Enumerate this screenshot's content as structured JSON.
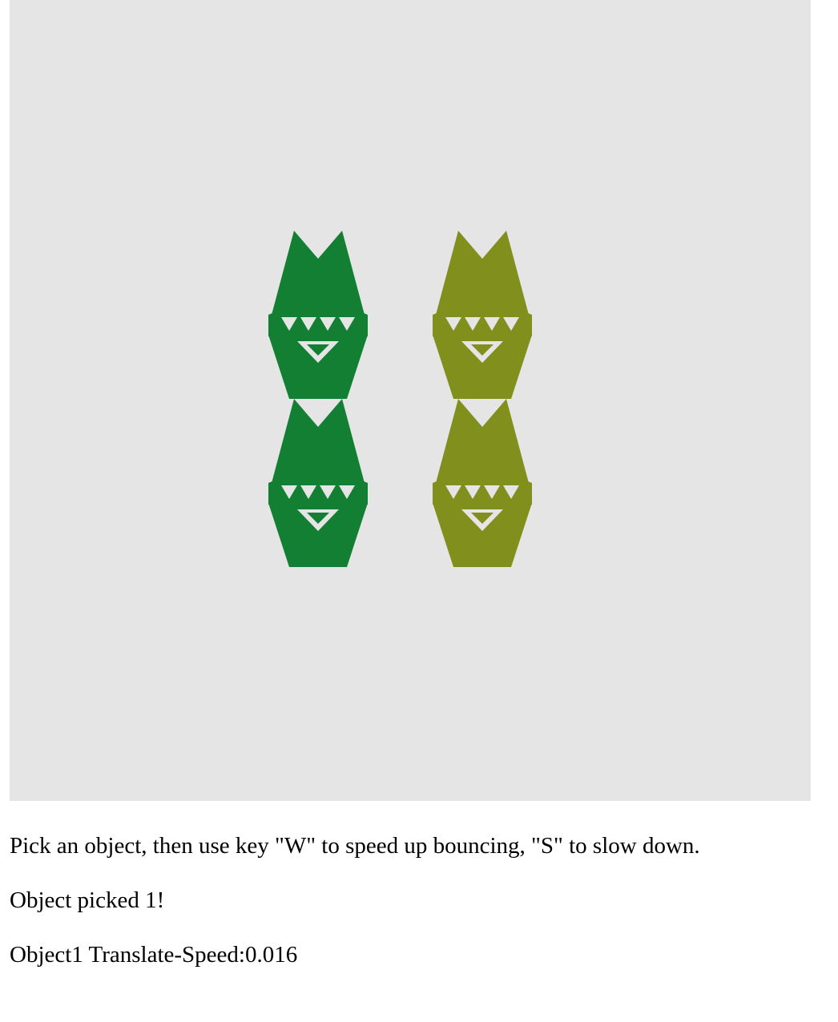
{
  "scene": {
    "background_color": "#e5e5e5",
    "objects": [
      {
        "name": "object-1",
        "color": "#127f32"
      },
      {
        "name": "object-2",
        "color": "#81901d"
      }
    ]
  },
  "instructions": "Pick an object, then use key \"W\" to speed up bouncing, \"S\" to slow down.",
  "status": {
    "picked": "Object picked 1!",
    "speed": "Object1 Translate-Speed:0.016"
  }
}
